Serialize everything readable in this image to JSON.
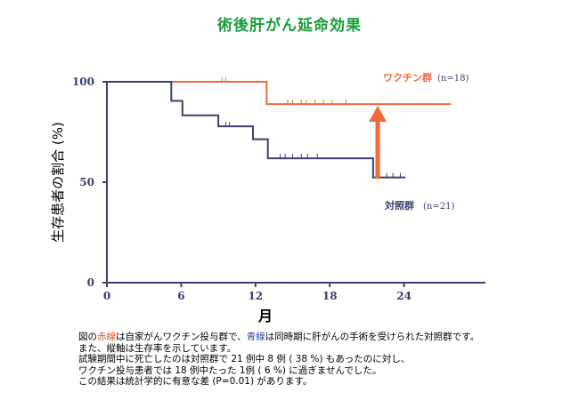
{
  "title": "術後肝がん延命効果",
  "chart_data": {
    "type": "line",
    "subtype": "step (Kaplan-Meier survival curve)",
    "xlabel": "月",
    "ylabel": "生存患者の割合 (%)",
    "x_ticks": [
      "0",
      "6",
      "12",
      "18",
      "24"
    ],
    "y_ticks": [
      "100",
      "50",
      "0"
    ],
    "xlim": [
      0,
      30
    ],
    "ylim": [
      0,
      100
    ],
    "series": [
      {
        "name": "ワクチン群",
        "n_label": "(n=18)",
        "color": "#f06a3a",
        "points": [
          [
            0,
            100
          ],
          [
            12.9,
            100
          ],
          [
            12.9,
            88.9
          ],
          [
            27.8,
            88.9
          ]
        ],
        "censor_marks": [
          [
            9.3,
            100
          ],
          [
            9.6,
            100
          ],
          [
            14.6,
            88.9
          ],
          [
            15.0,
            88.9
          ],
          [
            15.7,
            88.9
          ],
          [
            16.1,
            88.9
          ],
          [
            16.8,
            88.9
          ],
          [
            17.5,
            88.9
          ],
          [
            18.2,
            88.9
          ],
          [
            19.3,
            88.9
          ]
        ]
      },
      {
        "name": "対照群",
        "n_label": "(n=21)",
        "color": "#3b3f6e",
        "points": [
          [
            0,
            100
          ],
          [
            5.2,
            100
          ],
          [
            5.2,
            90.5
          ],
          [
            6.1,
            90.5
          ],
          [
            6.1,
            83.3
          ],
          [
            9.0,
            83.3
          ],
          [
            9.0,
            77.8
          ],
          [
            11.8,
            77.8
          ],
          [
            11.8,
            71.4
          ],
          [
            13.0,
            71.4
          ],
          [
            13.0,
            61.9
          ],
          [
            21.5,
            61.9
          ],
          [
            21.5,
            52.4
          ],
          [
            24.1,
            52.4
          ]
        ],
        "censor_marks": [
          [
            9.6,
            77.8
          ],
          [
            9.9,
            77.8
          ],
          [
            14.0,
            61.9
          ],
          [
            14.4,
            61.9
          ],
          [
            15.0,
            61.9
          ],
          [
            15.7,
            61.9
          ],
          [
            16.2,
            61.9
          ],
          [
            17.0,
            61.9
          ],
          [
            22.0,
            52.4
          ],
          [
            22.6,
            52.4
          ],
          [
            23.1,
            52.4
          ],
          [
            23.7,
            52.4
          ]
        ]
      }
    ],
    "arrow_color": "#f06a3a"
  },
  "caption": {
    "l1_a": "図の",
    "l1_red": "赤線",
    "l1_b": "は自家がんワクチン投与群で、",
    "l1_blue": "青線",
    "l1_c": "は同時期に肝がんの手術を受けられた対照群です。",
    "l2": "また、縦軸は生存率を示しています。",
    "l3": "試験期間中に死亡したのは対照群で 21 例中 8 例 ( 38 %) もあったのに対し、",
    "l4": "ワクチン投与患者では 18 例中たった 1例 ( 6 %) に過ぎませんでした。",
    "l5": "この結果は統計学的に有意な差 (P=0.01) があります。"
  }
}
